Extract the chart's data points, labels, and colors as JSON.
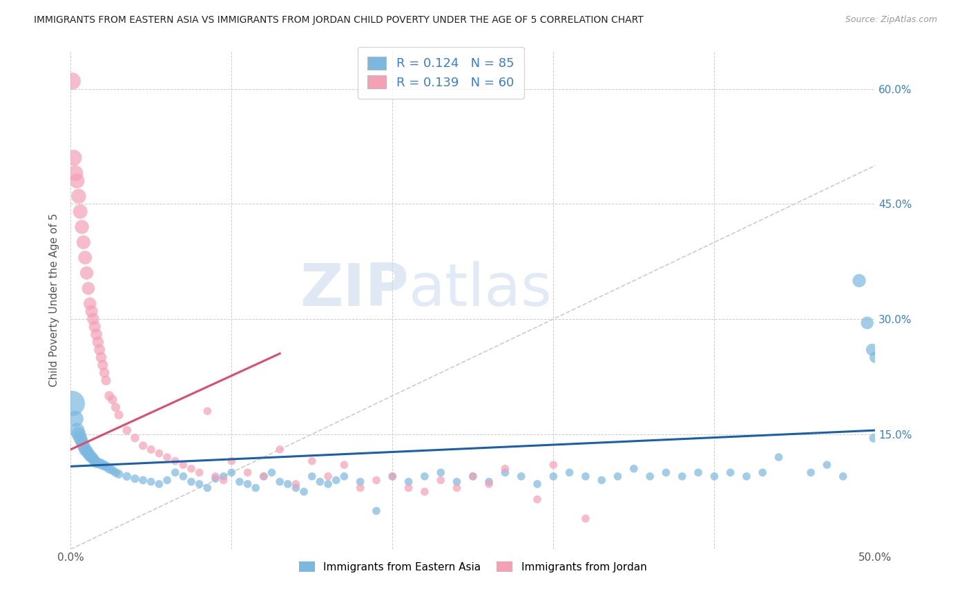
{
  "title": "IMMIGRANTS FROM EASTERN ASIA VS IMMIGRANTS FROM JORDAN CHILD POVERTY UNDER THE AGE OF 5 CORRELATION CHART",
  "source": "Source: ZipAtlas.com",
  "ylabel": "Child Poverty Under the Age of 5",
  "xlim": [
    0.0,
    0.5
  ],
  "ylim": [
    0.0,
    0.65
  ],
  "blue_color": "#7bb8e0",
  "pink_color": "#f4a0b5",
  "blue_line_color": "#1a5fa8",
  "pink_line_color": "#d94f6b",
  "diagonal_color": "#cccccc",
  "watermark_zip": "ZIP",
  "watermark_atlas": "atlas",
  "legend_R_blue": "0.124",
  "legend_N_blue": "85",
  "legend_R_pink": "0.139",
  "legend_N_pink": "60",
  "blue_scatter_x": [
    0.001,
    0.003,
    0.004,
    0.005,
    0.006,
    0.007,
    0.008,
    0.009,
    0.01,
    0.011,
    0.012,
    0.013,
    0.014,
    0.015,
    0.016,
    0.018,
    0.02,
    0.022,
    0.024,
    0.026,
    0.028,
    0.03,
    0.035,
    0.04,
    0.045,
    0.05,
    0.055,
    0.06,
    0.065,
    0.07,
    0.075,
    0.08,
    0.085,
    0.09,
    0.095,
    0.1,
    0.105,
    0.11,
    0.115,
    0.12,
    0.125,
    0.13,
    0.135,
    0.14,
    0.145,
    0.15,
    0.155,
    0.16,
    0.165,
    0.17,
    0.18,
    0.19,
    0.2,
    0.21,
    0.22,
    0.23,
    0.24,
    0.25,
    0.26,
    0.27,
    0.28,
    0.29,
    0.3,
    0.31,
    0.32,
    0.33,
    0.34,
    0.35,
    0.36,
    0.37,
    0.38,
    0.39,
    0.4,
    0.41,
    0.42,
    0.43,
    0.44,
    0.46,
    0.47,
    0.48,
    0.49,
    0.495,
    0.498,
    0.499,
    0.5
  ],
  "blue_scatter_y": [
    0.19,
    0.17,
    0.155,
    0.15,
    0.145,
    0.14,
    0.135,
    0.13,
    0.128,
    0.125,
    0.122,
    0.12,
    0.118,
    0.115,
    0.113,
    0.112,
    0.11,
    0.108,
    0.105,
    0.103,
    0.1,
    0.098,
    0.095,
    0.092,
    0.09,
    0.088,
    0.085,
    0.09,
    0.1,
    0.095,
    0.088,
    0.085,
    0.08,
    0.092,
    0.095,
    0.1,
    0.088,
    0.085,
    0.08,
    0.095,
    0.1,
    0.088,
    0.085,
    0.08,
    0.075,
    0.095,
    0.088,
    0.085,
    0.09,
    0.095,
    0.088,
    0.05,
    0.095,
    0.088,
    0.095,
    0.1,
    0.088,
    0.095,
    0.088,
    0.1,
    0.095,
    0.085,
    0.095,
    0.1,
    0.095,
    0.09,
    0.095,
    0.105,
    0.095,
    0.1,
    0.095,
    0.1,
    0.095,
    0.1,
    0.095,
    0.1,
    0.12,
    0.1,
    0.11,
    0.095,
    0.35,
    0.295,
    0.26,
    0.145,
    0.25
  ],
  "blue_scatter_size": [
    200,
    80,
    70,
    65,
    60,
    55,
    55,
    50,
    50,
    48,
    46,
    44,
    42,
    40,
    38,
    35,
    33,
    30,
    28,
    26,
    25,
    24,
    23,
    22,
    21,
    20,
    20,
    20,
    20,
    20,
    20,
    20,
    20,
    20,
    20,
    20,
    20,
    20,
    20,
    20,
    20,
    20,
    20,
    20,
    20,
    20,
    20,
    20,
    20,
    20,
    20,
    20,
    20,
    20,
    20,
    20,
    20,
    20,
    20,
    20,
    20,
    20,
    20,
    20,
    20,
    20,
    20,
    20,
    20,
    20,
    20,
    20,
    20,
    20,
    20,
    20,
    20,
    20,
    20,
    20,
    55,
    50,
    45,
    25,
    40
  ],
  "pink_scatter_x": [
    0.001,
    0.002,
    0.003,
    0.004,
    0.005,
    0.006,
    0.007,
    0.008,
    0.009,
    0.01,
    0.011,
    0.012,
    0.013,
    0.014,
    0.015,
    0.016,
    0.017,
    0.018,
    0.019,
    0.02,
    0.021,
    0.022,
    0.024,
    0.026,
    0.028,
    0.03,
    0.035,
    0.04,
    0.045,
    0.05,
    0.055,
    0.06,
    0.065,
    0.07,
    0.075,
    0.08,
    0.085,
    0.09,
    0.095,
    0.1,
    0.11,
    0.12,
    0.13,
    0.14,
    0.15,
    0.16,
    0.17,
    0.18,
    0.19,
    0.2,
    0.21,
    0.22,
    0.23,
    0.24,
    0.25,
    0.26,
    0.27,
    0.29,
    0.3,
    0.32
  ],
  "pink_scatter_y": [
    0.61,
    0.51,
    0.49,
    0.48,
    0.46,
    0.44,
    0.42,
    0.4,
    0.38,
    0.36,
    0.34,
    0.32,
    0.31,
    0.3,
    0.29,
    0.28,
    0.27,
    0.26,
    0.25,
    0.24,
    0.23,
    0.22,
    0.2,
    0.195,
    0.185,
    0.175,
    0.155,
    0.145,
    0.135,
    0.13,
    0.125,
    0.12,
    0.115,
    0.11,
    0.105,
    0.1,
    0.18,
    0.095,
    0.09,
    0.115,
    0.1,
    0.095,
    0.13,
    0.085,
    0.115,
    0.095,
    0.11,
    0.08,
    0.09,
    0.095,
    0.08,
    0.075,
    0.09,
    0.08,
    0.095,
    0.085,
    0.105,
    0.065,
    0.11,
    0.04
  ],
  "pink_scatter_size": [
    90,
    80,
    75,
    70,
    68,
    65,
    62,
    60,
    58,
    55,
    52,
    50,
    48,
    46,
    44,
    42,
    40,
    38,
    36,
    34,
    32,
    30,
    28,
    27,
    26,
    25,
    24,
    23,
    22,
    21,
    20,
    20,
    20,
    20,
    20,
    20,
    20,
    20,
    20,
    20,
    20,
    20,
    20,
    20,
    20,
    20,
    20,
    20,
    20,
    20,
    20,
    20,
    20,
    20,
    20,
    20,
    20,
    20,
    20,
    20
  ],
  "blue_trend_x": [
    0.0,
    0.5
  ],
  "blue_trend_y": [
    0.108,
    0.155
  ],
  "pink_trend_x": [
    0.0,
    0.13
  ],
  "pink_trend_y": [
    0.13,
    0.255
  ]
}
